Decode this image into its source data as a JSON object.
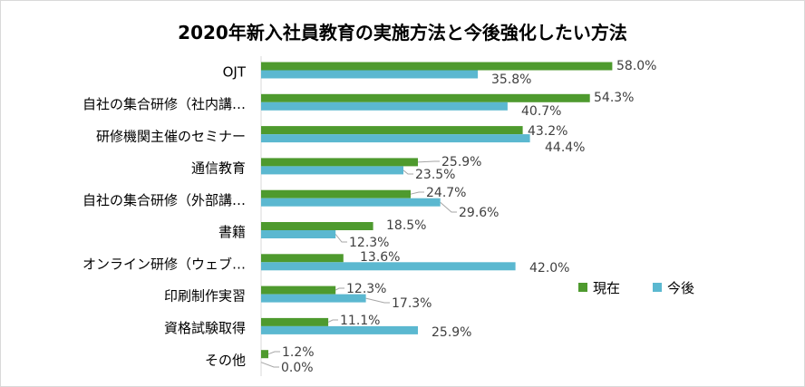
{
  "chart_data": {
    "type": "bar",
    "orientation": "horizontal",
    "title": "2020年新入社員教育の実施方法と今後強化したい方法",
    "categories": [
      "OJT",
      "自社の集合研修（社内講…",
      "研修機関主催のセミナー",
      "通信教育",
      "自社の集合研修（外部講…",
      "書籍",
      "オンライン研修（ウェブ…",
      "印刷制作実習",
      "資格試験取得",
      "その他"
    ],
    "series": [
      {
        "name": "現在",
        "color": "#4e9a2e",
        "values": [
          58.0,
          54.3,
          43.2,
          25.9,
          24.7,
          18.5,
          13.6,
          12.3,
          11.1,
          1.2
        ],
        "labels": [
          "58.0%",
          "54.3%",
          "43.2%",
          "25.9%",
          "24.7%",
          "18.5%",
          "13.6%",
          "12.3%",
          "11.1%",
          "1.2%"
        ]
      },
      {
        "name": "今後",
        "color": "#5bb8d0",
        "values": [
          35.8,
          40.7,
          44.4,
          23.5,
          29.6,
          12.3,
          42.0,
          17.3,
          25.9,
          0.0
        ],
        "labels": [
          "35.8%",
          "40.7%",
          "44.4%",
          "23.5%",
          "29.6%",
          "12.3%",
          "42.0%",
          "17.3%",
          "25.9%",
          "0.0%"
        ]
      }
    ],
    "xlim": [
      0,
      70
    ],
    "legend_position": "right",
    "grid": false
  }
}
